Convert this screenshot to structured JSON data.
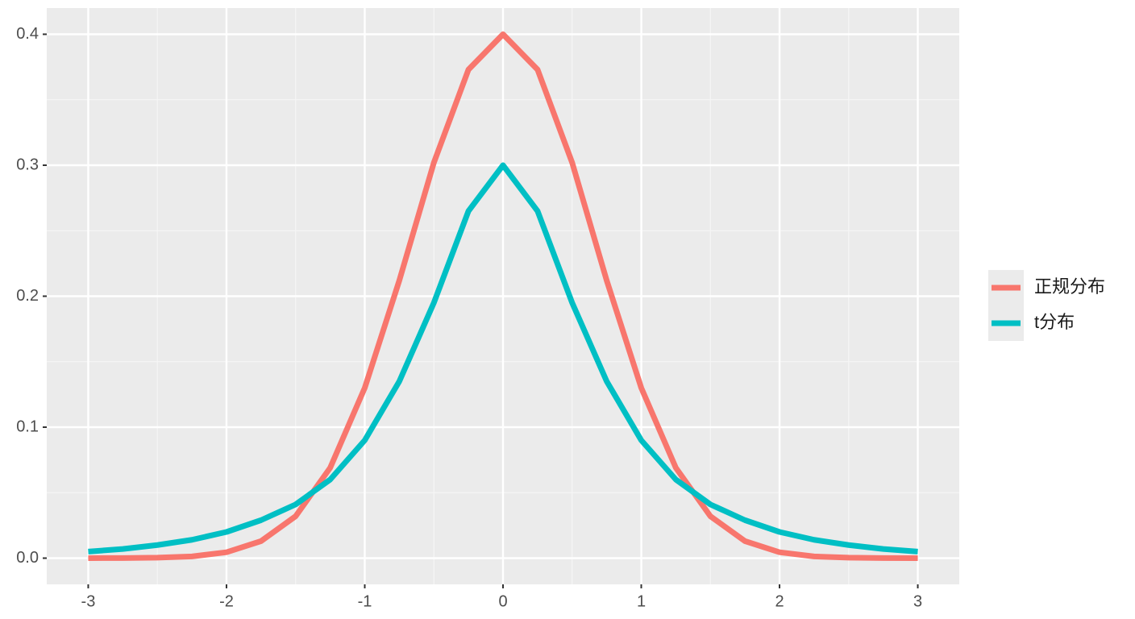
{
  "chart_data": {
    "type": "line",
    "x": [
      -3,
      -2.75,
      -2.5,
      -2.25,
      -2,
      -1.75,
      -1.5,
      -1.25,
      -1,
      -0.75,
      -0.5,
      -0.25,
      0,
      0.25,
      0.5,
      0.75,
      1,
      1.25,
      1.5,
      1.75,
      2,
      2.25,
      2.5,
      2.75,
      3
    ],
    "series": [
      {
        "name": "正规分布",
        "color": "#F8766D",
        "values": [
          0.0,
          0.0001,
          0.0004,
          0.0013,
          0.0045,
          0.013,
          0.032,
          0.069,
          0.13,
          0.212,
          0.302,
          0.373,
          0.4,
          0.373,
          0.302,
          0.212,
          0.13,
          0.069,
          0.032,
          0.013,
          0.0045,
          0.0013,
          0.0004,
          0.0001,
          0.0
        ]
      },
      {
        "name": "t分布",
        "color": "#00BFC4",
        "values": [
          0.005,
          0.007,
          0.01,
          0.014,
          0.02,
          0.029,
          0.041,
          0.06,
          0.09,
          0.135,
          0.195,
          0.265,
          0.3,
          0.265,
          0.195,
          0.135,
          0.09,
          0.06,
          0.041,
          0.029,
          0.02,
          0.014,
          0.01,
          0.007,
          0.005
        ]
      }
    ],
    "xlim": [
      -3.3,
      3.3
    ],
    "xticks": [
      -3,
      -2,
      -1,
      0,
      1,
      2,
      3
    ],
    "ylim": [
      -0.02,
      0.42
    ],
    "yticks": [
      {
        "value": 0,
        "label": "0.0"
      },
      0.1,
      0.2,
      0.3,
      0.4
    ],
    "grid": true,
    "legend": "right"
  }
}
